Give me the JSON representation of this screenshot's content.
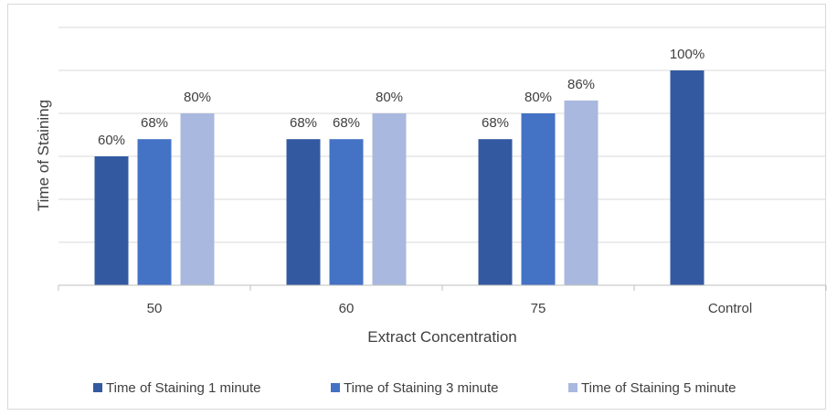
{
  "chart_data": {
    "type": "bar",
    "title": "",
    "xlabel": "Extract Concentration",
    "ylabel": "Time of Staining",
    "categories": [
      "50",
      "60",
      "75",
      "Control"
    ],
    "ylim": [
      0,
      120
    ],
    "y_tick_labels_shown": false,
    "grid": "horizontal",
    "legend_position": "bottom",
    "value_format": "percent",
    "series": [
      {
        "name": "Time of Staining 1 minute",
        "color": "#335aa1",
        "values": [
          60,
          68,
          68,
          100
        ]
      },
      {
        "name": "Time of Staining 3 minute",
        "color": "#4472c4",
        "values": [
          68,
          68,
          80,
          null
        ]
      },
      {
        "name": "Time of Staining 5 minute",
        "color": "#a9b8de",
        "values": [
          80,
          80,
          86,
          null
        ]
      }
    ]
  }
}
